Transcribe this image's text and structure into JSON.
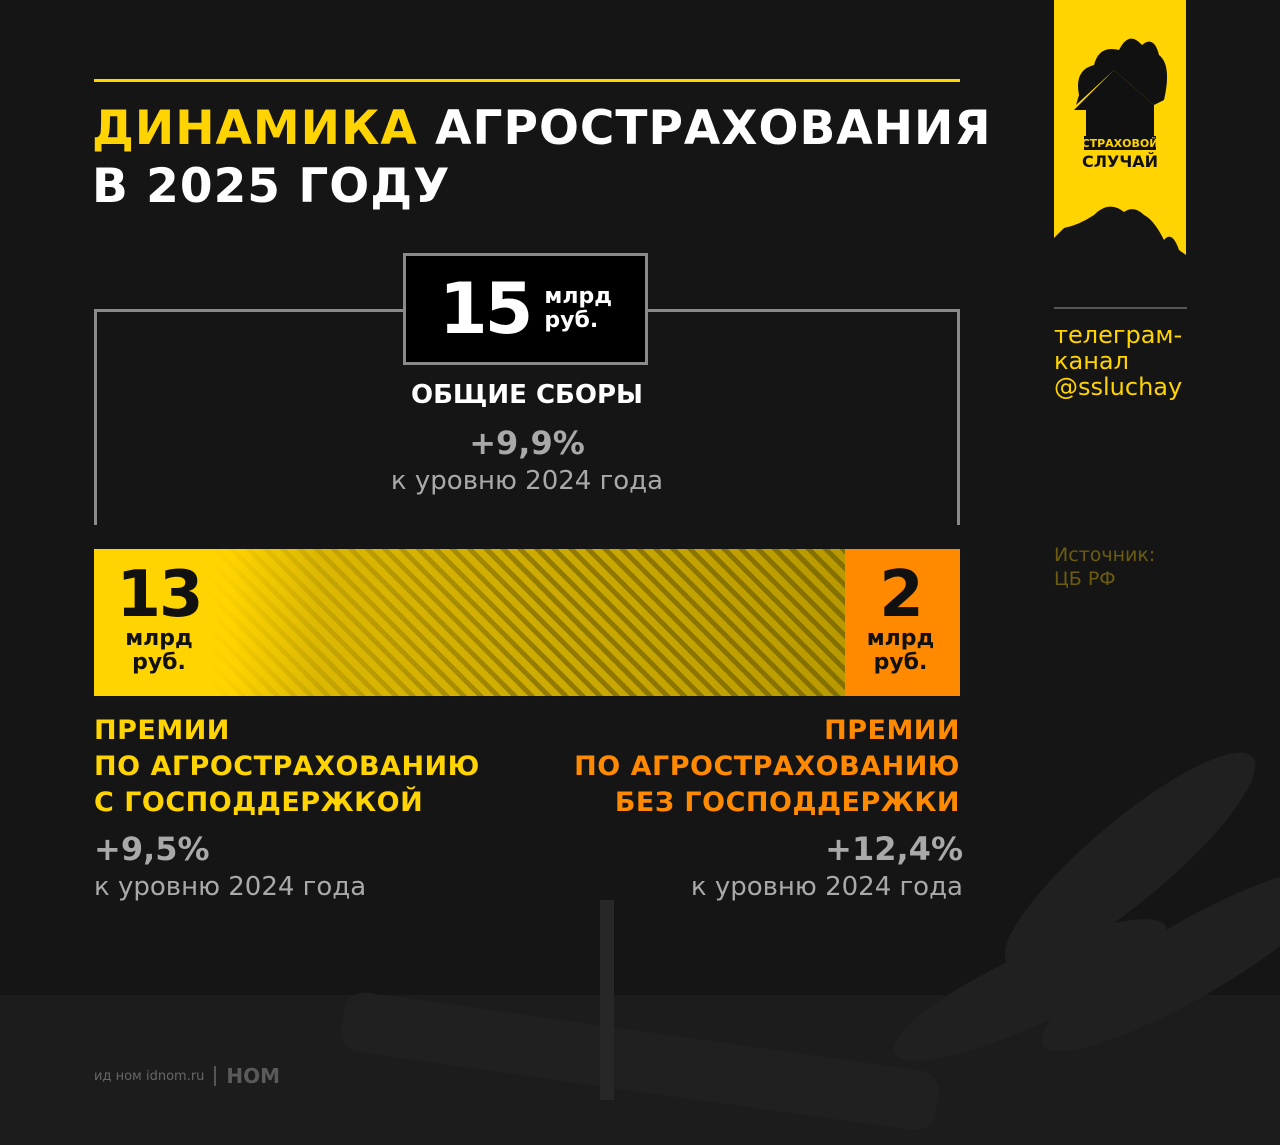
{
  "header": {
    "title_highlight": "ДИНАМИКА",
    "title_rest": " АГРОСТРАХОВАНИЯ",
    "title_line2": "В 2025 ГОДУ"
  },
  "total": {
    "value": "15",
    "unit_line1": "млрд",
    "unit_line2": "руб.",
    "label": "ОБЩИЕ СБОРЫ",
    "change": "+9,9%",
    "change_note": "к уровню 2024 года"
  },
  "chart_data": {
    "type": "bar",
    "stacked": true,
    "title": "Динамика агрострахования в 2025 году",
    "unit": "млрд руб.",
    "total": 15,
    "series": [
      {
        "name": "Премии по агрострахованию с господдержкой",
        "value": 13,
        "change": "+9,5%",
        "color": "#ffd400"
      },
      {
        "name": "Премии по агрострахованию без господдержки",
        "value": 2,
        "change": "+12,4%",
        "color": "#ff8a00"
      }
    ]
  },
  "segments": [
    {
      "value": "13",
      "unit_line1": "млрд",
      "unit_line2": "руб.",
      "cap1": "ПРЕМИИ",
      "cap2": "ПО АГРОСТРАХОВАНИЮ",
      "cap3": "С ГОСПОДДЕРЖКОЙ",
      "change": "+9,5%",
      "change_note": "к уровню 2024 года"
    },
    {
      "value": "2",
      "unit_line1": "млрд",
      "unit_line2": "руб.",
      "cap1": "ПРЕМИИ",
      "cap2": "ПО АГРОСТРАХОВАНИЮ",
      "cap3": "БЕЗ ГОСПОДДЕРЖКИ",
      "change": "+12,4%",
      "change_note": "к уровню 2024 года"
    }
  ],
  "sidebar": {
    "logo_line1": "СТРАХОВОЙ",
    "logo_line2": "СЛУЧАЙ",
    "telegram1": "телеграм-",
    "telegram2": "канал",
    "telegram_handle": "@ssluchay",
    "source_label": "Источник:",
    "source": "ЦБ РФ"
  },
  "footer": {
    "publisher": "ид ном idnom.ru",
    "brand": "НОМ"
  },
  "colors": {
    "yellow": "#ffd400",
    "orange": "#ff8a00",
    "background": "#151515"
  }
}
